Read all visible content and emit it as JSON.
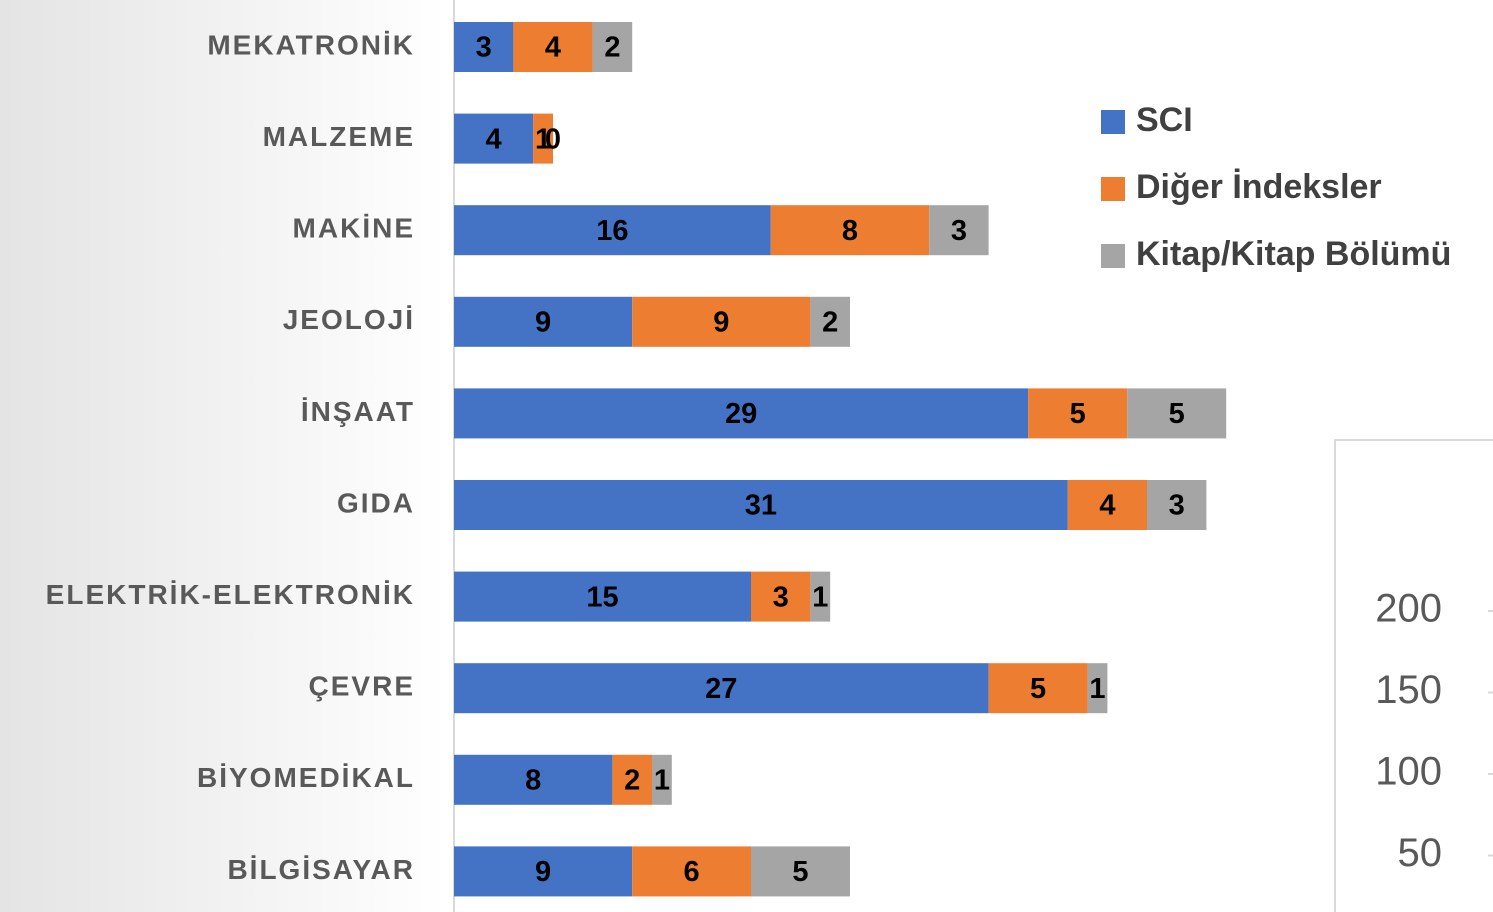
{
  "chart_data": [
    {
      "type": "stacked-bar-horizontal",
      "categories": [
        "MEKATRONİK",
        "MALZEME",
        "MAKİNE",
        "JEOLOJİ",
        "İNŞAAT",
        "GIDA",
        "ELEKTRİK-ELEKTRONİK",
        "ÇEVRE",
        "BİYOMEDİKAL",
        "BİLGİSAYAR"
      ],
      "series": [
        {
          "name": "SCI",
          "color": "#4472c4",
          "values": [
            3,
            4,
            16,
            9,
            29,
            31,
            15,
            27,
            8,
            9
          ]
        },
        {
          "name": "Diğer İndeksler",
          "color": "#ed7d31",
          "values": [
            4,
            1,
            8,
            9,
            5,
            4,
            3,
            5,
            2,
            6
          ]
        },
        {
          "name": "Kitap/Kitap Bölümü",
          "color": "#a5a5a5",
          "values": [
            2,
            0,
            3,
            2,
            5,
            3,
            1,
            1,
            1,
            5
          ]
        }
      ],
      "legend": "right"
    },
    {
      "type": "partial-axis",
      "yticks": [
        50,
        100,
        150,
        200
      ]
    }
  ]
}
